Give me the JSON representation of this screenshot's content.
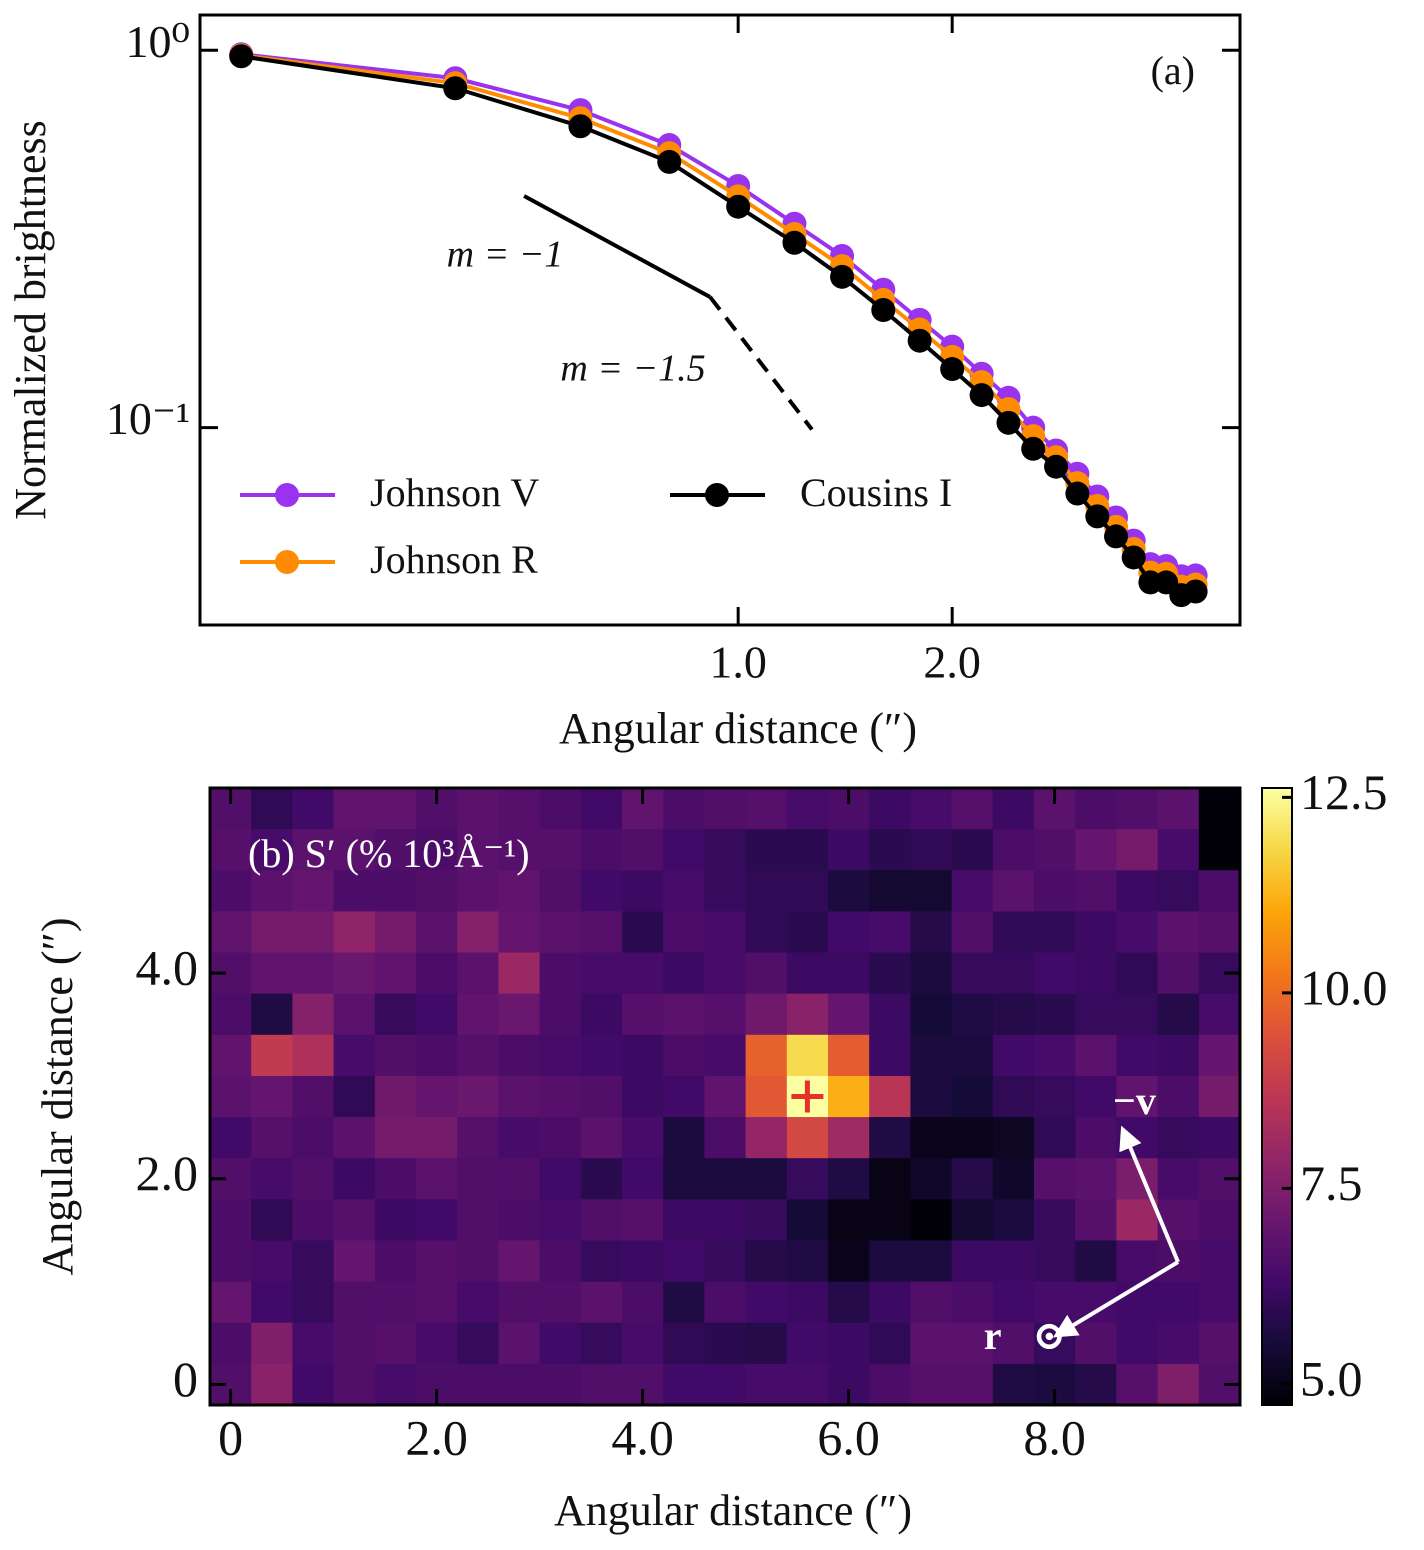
{
  "chart_data": [
    {
      "type": "line",
      "xlabel": "Angular distance (″)",
      "ylabel": "Normalized brightness",
      "xscale": "log",
      "yscale": "log",
      "xlim": [
        0.175,
        5.08
      ],
      "ylim": [
        0.03,
        1.24
      ],
      "xticks": [
        {
          "value": 1,
          "label": "1.0"
        },
        {
          "value": 2,
          "label": "2.0"
        }
      ],
      "yticks": [
        {
          "value": 0.1,
          "label": "10⁻¹"
        },
        {
          "value": 1,
          "label": "10⁰"
        }
      ],
      "x": [
        0.2,
        0.4,
        0.6,
        0.8,
        1.0,
        1.2,
        1.4,
        1.6,
        1.8,
        2.0,
        2.2,
        2.4,
        2.6,
        2.8,
        3.0,
        3.2,
        3.4,
        3.6,
        3.8,
        4.0,
        4.2,
        4.4
      ],
      "series": [
        {
          "name": "Johnson V",
          "color": "#9933ee",
          "values": [
            0.976,
            0.843,
            0.694,
            0.561,
            0.437,
            0.347,
            0.285,
            0.232,
            0.193,
            0.164,
            0.139,
            0.12,
            0.1,
            0.087,
            0.0755,
            0.0657,
            0.0578,
            0.0502,
            0.0435,
            0.043,
            0.0404,
            0.0406
          ]
        },
        {
          "name": "Johnson R",
          "color": "#ff8c00",
          "values": [
            0.97,
            0.818,
            0.661,
            0.534,
            0.41,
            0.326,
            0.268,
            0.218,
            0.182,
            0.154,
            0.132,
            0.112,
            0.095,
            0.0835,
            0.0713,
            0.062,
            0.0546,
            0.0477,
            0.0413,
            0.041,
            0.0379,
            0.0384
          ]
        },
        {
          "name": "Cousins I",
          "color": "#000000",
          "values": [
            0.964,
            0.793,
            0.629,
            0.506,
            0.385,
            0.309,
            0.251,
            0.205,
            0.17,
            0.143,
            0.122,
            0.103,
            0.0879,
            0.0788,
            0.0669,
            0.0582,
            0.0515,
            0.0453,
            0.0389,
            0.0389,
            0.036,
            0.0368
          ]
        }
      ],
      "legend": "lower left",
      "panel_label": "(a)",
      "guides": [
        {
          "label": "m = −1",
          "x": [
            0.5,
            0.913
          ],
          "y": [
            0.411,
            0.222
          ],
          "style": "solid"
        },
        {
          "label": "m = −1.5",
          "x": [
            0.913,
            1.27
          ],
          "y": [
            0.222,
            0.0989
          ],
          "style": "dashed"
        }
      ]
    },
    {
      "type": "heatmap",
      "title": "(b) S′ (% 10³Å⁻¹)",
      "xlabel": "Angular distance (″)",
      "ylabel": "Angular distance (″)",
      "xlim": [
        -0.2,
        9.8
      ],
      "ylim": [
        -0.2,
        5.8
      ],
      "xticks": [
        0,
        {
          "value": 2,
          "label": "2.0"
        },
        {
          "value": 4,
          "label": "4.0"
        },
        {
          "value": 6,
          "label": "6.0"
        },
        {
          "value": 8,
          "label": "8.0"
        }
      ],
      "yticks": [
        0,
        {
          "value": 2,
          "label": "2.0"
        },
        {
          "value": 4,
          "label": "4.0"
        }
      ],
      "x": [
        0,
        0.4,
        0.8,
        1.2,
        1.6,
        2.0,
        2.4,
        2.8,
        3.2,
        3.6,
        4.0,
        4.4,
        4.8,
        5.2,
        5.6,
        6.0,
        6.4,
        6.8,
        7.2,
        7.6,
        8.0,
        8.4,
        8.8,
        9.2,
        9.6
      ],
      "y": [
        5.6,
        5.2,
        4.8,
        4.4,
        4.0,
        3.6,
        3.2,
        2.8,
        2.4,
        2.0,
        1.6,
        1.2,
        0.8,
        0.4,
        0
      ],
      "z": [
        [
          6.6,
          6.0,
          6.3,
          6.9,
          6.9,
          6.6,
          6.8,
          6.7,
          6.5,
          6.3,
          6.9,
          6.5,
          6.6,
          6.7,
          6.4,
          6.5,
          6.2,
          6.4,
          6.7,
          6.2,
          6.8,
          6.5,
          6.6,
          6.8,
          4.8
        ],
        [
          6.7,
          6.4,
          6.8,
          6.8,
          6.6,
          6.5,
          6.8,
          6.7,
          6.7,
          6.5,
          6.6,
          6.3,
          6.1,
          5.9,
          5.9,
          6.2,
          5.9,
          6.0,
          5.9,
          6.5,
          6.6,
          7.0,
          7.3,
          6.4,
          4.8
        ],
        [
          6.5,
          6.8,
          7.0,
          6.5,
          6.5,
          6.6,
          6.8,
          6.9,
          6.6,
          6.3,
          6.2,
          6.4,
          6.1,
          6.0,
          6.0,
          5.6,
          5.4,
          5.4,
          6.4,
          6.8,
          6.5,
          6.6,
          6.2,
          6.1,
          6.5
        ],
        [
          6.9,
          7.3,
          7.3,
          7.8,
          7.3,
          6.8,
          7.6,
          7.0,
          6.8,
          6.7,
          5.9,
          6.5,
          6.4,
          6.0,
          5.9,
          6.3,
          6.4,
          5.8,
          6.6,
          6.0,
          6.0,
          6.2,
          6.4,
          6.8,
          6.7
        ],
        [
          6.6,
          6.9,
          6.9,
          7.1,
          6.9,
          6.5,
          6.8,
          8.0,
          6.5,
          6.4,
          6.4,
          6.2,
          6.4,
          6.6,
          6.2,
          6.2,
          5.9,
          5.6,
          6.1,
          6.1,
          6.3,
          6.2,
          6.0,
          6.6,
          6.1
        ],
        [
          6.5,
          5.7,
          7.6,
          6.8,
          6.1,
          6.3,
          6.9,
          7.1,
          6.5,
          6.2,
          6.7,
          6.8,
          6.7,
          7.2,
          7.7,
          7.0,
          6.2,
          5.5,
          5.7,
          5.8,
          5.9,
          6.1,
          6.1,
          5.8,
          6.4
        ],
        [
          6.9,
          8.8,
          8.4,
          6.4,
          6.6,
          6.5,
          6.7,
          6.5,
          6.4,
          6.3,
          6.2,
          6.5,
          6.4,
          9.8,
          11.9,
          9.7,
          6.2,
          5.6,
          5.6,
          6.3,
          6.4,
          6.8,
          6.3,
          6.2,
          7.0
        ],
        [
          6.8,
          7.0,
          6.6,
          6.0,
          7.2,
          7.0,
          7.1,
          6.8,
          6.7,
          6.6,
          6.2,
          6.3,
          6.9,
          9.6,
          12.6,
          11.2,
          8.6,
          5.6,
          5.5,
          6.0,
          6.1,
          6.3,
          6.9,
          6.5,
          7.3
        ],
        [
          6.3,
          6.7,
          6.5,
          6.8,
          7.3,
          7.3,
          6.7,
          6.4,
          6.5,
          6.8,
          6.4,
          5.6,
          6.5,
          7.9,
          9.2,
          8.1,
          5.7,
          5.1,
          5.1,
          5.2,
          6.0,
          6.5,
          6.3,
          6.1,
          6.2
        ],
        [
          6.6,
          6.4,
          6.6,
          6.2,
          6.5,
          6.8,
          6.6,
          6.6,
          6.3,
          5.9,
          6.3,
          5.6,
          5.6,
          5.6,
          6.1,
          5.7,
          5.0,
          5.3,
          5.8,
          5.3,
          6.7,
          6.8,
          7.4,
          6.4,
          6.6
        ],
        [
          6.5,
          6.0,
          6.5,
          6.7,
          6.2,
          6.3,
          6.6,
          6.5,
          6.4,
          6.6,
          6.7,
          6.2,
          6.2,
          6.1,
          5.5,
          5.0,
          5.0,
          4.8,
          5.4,
          5.6,
          6.1,
          6.7,
          8.0,
          6.7,
          6.5
        ],
        [
          6.5,
          6.4,
          6.1,
          7.0,
          6.5,
          6.7,
          6.6,
          7.0,
          6.5,
          6.1,
          6.2,
          6.3,
          6.1,
          5.8,
          5.7,
          5.1,
          5.6,
          5.6,
          6.2,
          6.2,
          6.1,
          5.7,
          6.4,
          6.5,
          6.4
        ],
        [
          7.0,
          6.3,
          6.1,
          6.6,
          6.6,
          6.7,
          6.4,
          6.6,
          6.6,
          6.8,
          6.5,
          5.7,
          6.5,
          6.3,
          6.2,
          5.8,
          6.2,
          6.6,
          6.5,
          6.3,
          6.4,
          6.4,
          6.3,
          6.3,
          6.4
        ],
        [
          6.5,
          7.5,
          6.4,
          6.6,
          6.7,
          6.4,
          6.1,
          6.8,
          6.3,
          6.1,
          6.4,
          6.0,
          5.9,
          5.8,
          6.3,
          6.2,
          6.0,
          6.8,
          6.8,
          6.6,
          6.1,
          6.6,
          6.3,
          6.4,
          6.7
        ],
        [
          6.6,
          7.7,
          6.3,
          6.6,
          6.4,
          6.5,
          6.5,
          6.5,
          6.5,
          6.6,
          6.6,
          6.3,
          6.3,
          6.4,
          6.4,
          6.2,
          6.5,
          6.7,
          6.7,
          5.7,
          5.6,
          5.8,
          6.7,
          7.5,
          6.6
        ]
      ],
      "colormap": "inferno",
      "clim": [
        4.73,
        12.62
      ],
      "cticks": [
        {
          "value": 5,
          "label": "5.0"
        },
        7.5,
        {
          "value": 10,
          "label": "10.0"
        },
        12.5
      ],
      "marker": {
        "x": 5.6,
        "y": 2.8,
        "color": "#e8302a"
      },
      "vectors": [
        "−v⃗",
        "r⃗⊙"
      ]
    }
  ]
}
